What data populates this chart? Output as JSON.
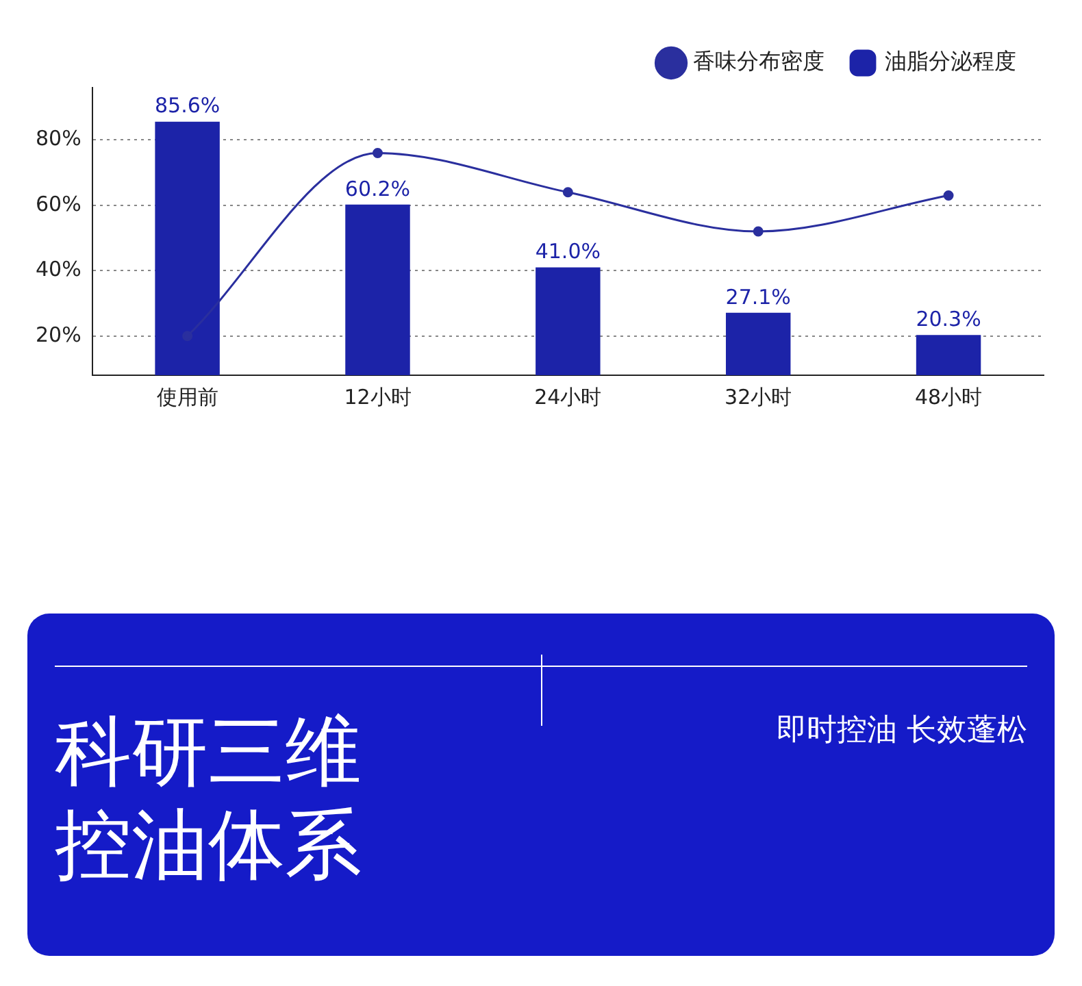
{
  "chart_data": [
    {
      "type": "bar",
      "categories": [
        "使用前",
        "12小时",
        "24小时",
        "32小时",
        "48小时"
      ],
      "series": [
        {
          "name": "油脂分泌程度",
          "type": "bar",
          "color": "#1c23a8",
          "values": [
            85.6,
            60.2,
            41.0,
            27.1,
            20.3
          ],
          "value_labels": [
            "85.6%",
            "60.2%",
            "41.0%",
            "27.1%",
            "20.3%"
          ]
        },
        {
          "name": "香味分布密度",
          "type": "line",
          "color": "#2a2f9e",
          "values": [
            20,
            76,
            64,
            52,
            63
          ]
        }
      ],
      "ylim": [
        8,
        96
      ],
      "yticks": [
        {
          "value": 20,
          "label": "20%"
        },
        {
          "value": 40,
          "label": "40%"
        },
        {
          "value": 60,
          "label": "60%"
        },
        {
          "value": 80,
          "label": "80%"
        }
      ],
      "grid": "y",
      "legend": "top right",
      "marker": "circle"
    },
    {
      "type": "other",
      "title": "科研三维控油体系",
      "subtitle": "即时控油 长效蓬松"
    }
  ]
}
